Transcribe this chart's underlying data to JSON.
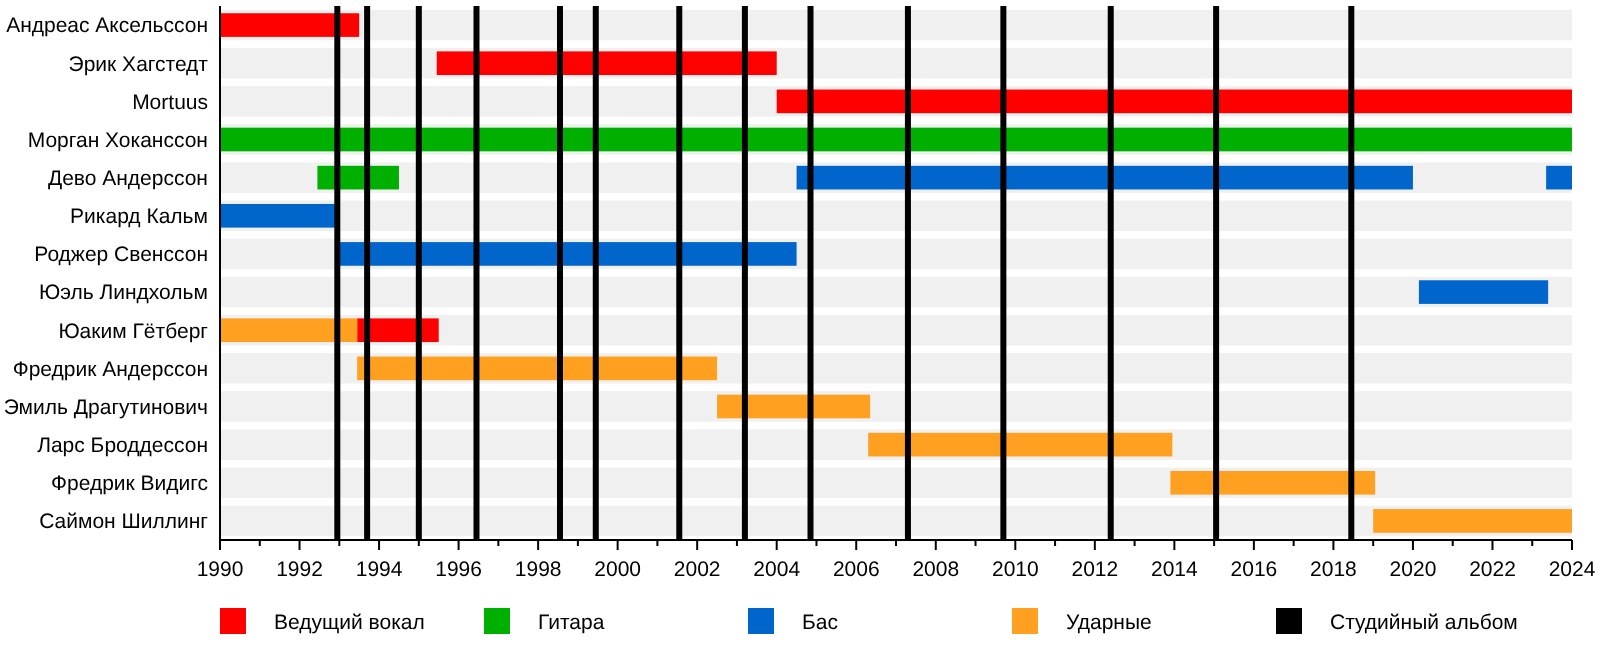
{
  "chart_data": {
    "type": "bar",
    "orientation": "horizontal",
    "categories": [
      "Андреас Аксельссон",
      "Эрик Хагстедт",
      "Mortuus",
      "Морган Хоканссон",
      "Дево Андерссон",
      "Рикард Кальм",
      "Роджер Свенссон",
      "Юэль Линдхольм",
      "Юаким Гётберг",
      "Фредрик Андерссон",
      "Эмиль Драгутинович",
      "Ларс Броддессон",
      "Фредрик Видигс",
      "Саймон Шиллинг"
    ],
    "series": [
      {
        "name": "Ведущий вокал",
        "color": "#ff0000",
        "values": [
          3.5,
          8.55,
          20,
          null,
          null,
          null,
          null,
          null,
          2.05,
          null,
          null,
          null,
          null,
          null
        ],
        "base": [
          1990,
          1995.45,
          2004,
          null,
          null,
          null,
          null,
          null,
          1993.45,
          null,
          null,
          null,
          null,
          null
        ]
      },
      {
        "name": "Гитара",
        "color": "#00b000",
        "values": [
          null,
          null,
          null,
          34,
          2.05,
          null,
          null,
          null,
          null,
          null,
          null,
          null,
          null,
          null
        ],
        "base": [
          null,
          null,
          null,
          1990,
          1992.45,
          null,
          null,
          null,
          null,
          null,
          null,
          null,
          null,
          null
        ]
      },
      {
        "name": "Бас",
        "color": "#0066cc",
        "values": [
          null,
          null,
          null,
          null,
          15.5,
          3,
          11.5,
          3.25,
          null,
          null,
          null,
          null,
          null,
          null
        ],
        "base": [
          null,
          null,
          null,
          null,
          2004.5,
          1990,
          1993,
          2020.15,
          null,
          null,
          null,
          null,
          null,
          null
        ]
      },
      {
        "color": "#0066cc",
        "values": [
          null,
          null,
          null,
          null,
          0.65,
          null,
          null,
          null,
          null,
          null,
          null,
          null,
          null,
          null
        ],
        "base": [
          null,
          null,
          null,
          null,
          2023.35,
          null,
          null,
          null,
          null,
          null,
          null,
          null,
          null,
          null
        ]
      },
      {
        "name": "Ударные",
        "color": "#ffa020",
        "values": [
          null,
          null,
          null,
          null,
          null,
          null,
          null,
          null,
          3.45,
          9.05,
          3.85,
          7.65,
          5.15,
          5
        ],
        "base": [
          null,
          null,
          null,
          null,
          null,
          null,
          null,
          null,
          1990,
          1993.45,
          2002.5,
          2006.3,
          2013.9,
          2019
        ]
      }
    ],
    "xlim": [
      1990,
      2024
    ],
    "xticks": [
      1990,
      {
        "value": 1991,
        "label": null
      },
      1992,
      {
        "value": 1993,
        "label": null
      },
      1994,
      {
        "value": 1995,
        "label": null
      },
      1996,
      {
        "value": 1997,
        "label": null
      },
      1998,
      {
        "value": 1999,
        "label": null
      },
      2000,
      {
        "value": 2001,
        "label": null
      },
      2002,
      {
        "value": 2003,
        "label": null
      },
      2004,
      {
        "value": 2005,
        "label": null
      },
      2006,
      {
        "value": 2007,
        "label": null
      },
      2008,
      {
        "value": 2009,
        "label": null
      },
      2010,
      {
        "value": 2011,
        "label": null
      },
      2012,
      {
        "value": 2013,
        "label": null
      },
      2014,
      {
        "value": 2015,
        "label": null
      },
      2016,
      {
        "value": 2017,
        "label": null
      },
      2018,
      {
        "value": 2019,
        "label": null
      },
      2020,
      {
        "value": 2021,
        "label": null
      },
      2022,
      {
        "value": 2023,
        "label": null
      },
      2024
    ],
    "ref_lines": [
      {
        "axis": "x",
        "value": 1992.95,
        "label": "Студийный альбом",
        "color": "#000000"
      },
      {
        "axis": "x",
        "value": 1993.7,
        "color": "#000000"
      },
      {
        "axis": "x",
        "value": 1995.0,
        "color": "#000000"
      },
      {
        "axis": "x",
        "value": 1996.45,
        "color": "#000000"
      },
      {
        "axis": "x",
        "value": 1998.55,
        "color": "#000000"
      },
      {
        "axis": "x",
        "value": 1999.45,
        "color": "#000000"
      },
      {
        "axis": "x",
        "value": 2001.55,
        "color": "#000000"
      },
      {
        "axis": "x",
        "value": 2003.2,
        "color": "#000000"
      },
      {
        "axis": "x",
        "value": 2004.85,
        "color": "#000000"
      },
      {
        "axis": "x",
        "value": 2007.3,
        "color": "#000000"
      },
      {
        "axis": "x",
        "value": 2009.7,
        "color": "#000000"
      },
      {
        "axis": "x",
        "value": 2012.4,
        "color": "#000000"
      },
      {
        "axis": "x",
        "value": 2015.05,
        "color": "#000000"
      },
      {
        "axis": "x",
        "value": 2018.45,
        "color": "#000000"
      }
    ],
    "legend": "bottom"
  }
}
